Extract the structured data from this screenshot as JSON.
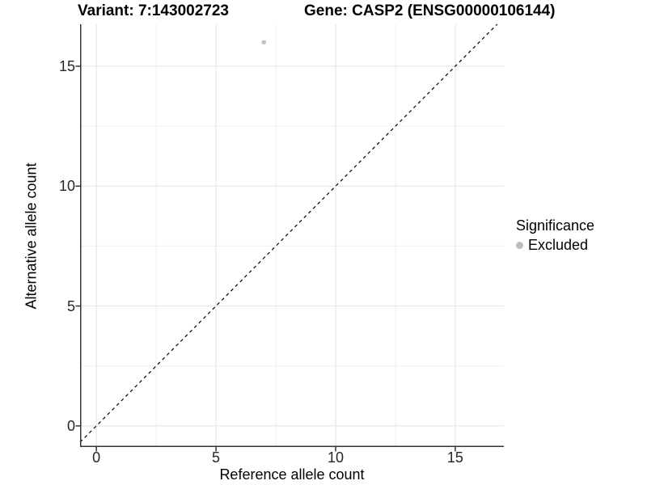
{
  "chart_data": {
    "type": "scatter",
    "title_left": "Variant: 7:143002723",
    "title_right": "Gene: CASP2 (ENSG00000106144)",
    "xlabel": "Reference allele count",
    "ylabel": "Alternative allele count",
    "xlim": [
      -0.68,
      17.03
    ],
    "ylim": [
      -0.88,
      16.75
    ],
    "x_major_ticks": [
      0,
      5,
      10,
      15
    ],
    "y_major_ticks": [
      0,
      5,
      10,
      15
    ],
    "x_minor_ticks": [
      2.5,
      7.5,
      12.5
    ],
    "y_minor_ticks": [
      2.5,
      7.5,
      12.5
    ],
    "x_tick_labels": [
      "0",
      "5",
      "10",
      "15"
    ],
    "y_tick_labels": [
      "0",
      "5",
      "10",
      "15"
    ],
    "grid": true,
    "points": [
      {
        "x": 7,
        "y": 16,
        "significance": "Excluded"
      }
    ],
    "point_color": "#c2c2c2",
    "point_radius": 2.8,
    "reference_line": {
      "type": "identity",
      "style": "dashed",
      "color": "#000000"
    },
    "legend_position": "right"
  },
  "legend": {
    "title": "Significance",
    "items": [
      {
        "label": "Excluded",
        "color": "#bdbdbd",
        "marker": "circle"
      }
    ]
  },
  "colors": {
    "background": "#ffffff",
    "grid_major": "#e2e2e2",
    "grid_minor": "#efefef",
    "axis_line": "#333333",
    "tick_mark": "#333333",
    "tick_label": "#262626",
    "title": "#000000"
  }
}
